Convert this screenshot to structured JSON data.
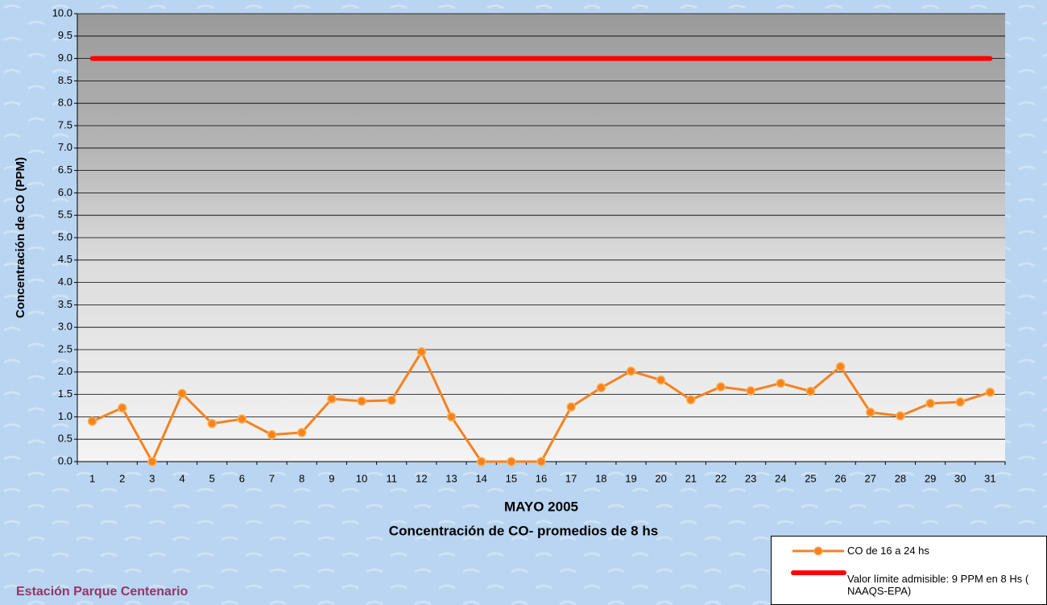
{
  "chart_data": {
    "type": "line",
    "title": "Concentración de CO- promedios de 8 hs",
    "subtitle": "Estación Parque Centenario",
    "x_label": "MAYO 2005",
    "y_label": "Concentración de CO (PPM)",
    "categories": [
      "1",
      "2",
      "3",
      "4",
      "5",
      "6",
      "7",
      "8",
      "9",
      "10",
      "11",
      "12",
      "13",
      "14",
      "15",
      "16",
      "17",
      "18",
      "19",
      "20",
      "21",
      "22",
      "23",
      "24",
      "25",
      "26",
      "27",
      "28",
      "29",
      "30",
      "31"
    ],
    "series": [
      {
        "name": "CO de 16 a 24 hs",
        "color": "#f58220",
        "values": [
          0.9,
          1.2,
          0.0,
          1.52,
          0.85,
          0.95,
          0.6,
          0.65,
          1.4,
          1.35,
          1.37,
          2.45,
          1.0,
          0.0,
          0.0,
          0.0,
          1.22,
          1.65,
          2.02,
          1.82,
          1.38,
          1.67,
          1.58,
          1.75,
          1.57,
          2.12,
          1.1,
          1.02,
          1.3,
          1.33,
          1.55
        ]
      },
      {
        "name": "Valor límite admisible: 9 PPM en 8 Hs ( NAAQS-EPA)",
        "color": "#ff0000",
        "values": [
          9,
          9,
          9,
          9,
          9,
          9,
          9,
          9,
          9,
          9,
          9,
          9,
          9,
          9,
          9,
          9,
          9,
          9,
          9,
          9,
          9,
          9,
          9,
          9,
          9,
          9,
          9,
          9,
          9,
          9,
          9
        ]
      }
    ],
    "ylim": [
      0,
      10
    ],
    "yticks": [
      {
        "value": 0,
        "label": "0.0"
      },
      0.5,
      {
        "value": 1,
        "label": "1.0"
      },
      1.5,
      {
        "value": 2,
        "label": "2.0"
      },
      2.5,
      {
        "value": 3,
        "label": "3.0"
      },
      3.5,
      {
        "value": 4,
        "label": "4.0"
      },
      4.5,
      {
        "value": 5,
        "label": "5.0"
      },
      5.5,
      {
        "value": 6,
        "label": "6.0"
      },
      6.5,
      {
        "value": 7,
        "label": "7.0"
      },
      7.5,
      {
        "value": 8,
        "label": "8.0"
      },
      8.5,
      {
        "value": 9,
        "label": "9.0"
      },
      9.5,
      {
        "value": 10,
        "label": "10.0"
      }
    ],
    "grid": true
  }
}
